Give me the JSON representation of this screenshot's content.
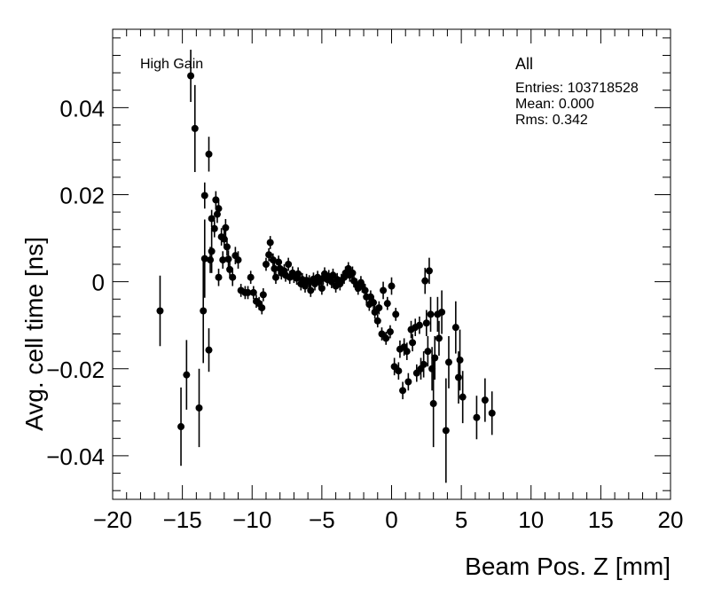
{
  "chart_data": {
    "type": "scatter",
    "xlabel": "Beam Pos. Z [mm]",
    "ylabel": "Avg. cell time [ns]",
    "xlim": [
      -20,
      20
    ],
    "ylim": [
      -0.05,
      0.058
    ],
    "xticks": [
      -20,
      -15,
      -10,
      -5,
      0,
      5,
      10,
      15,
      20
    ],
    "yticks": [
      -0.04,
      -0.02,
      0,
      0.02,
      0.04
    ],
    "xtick_labels": [
      "−20",
      "−15",
      "−10",
      "−5",
      "0",
      "5",
      "10",
      "15",
      "20"
    ],
    "ytick_labels": [
      "−0.04",
      "−0.02",
      "0",
      "0.02",
      "0.04"
    ],
    "annotation": "High Gain",
    "stats": {
      "title": "All",
      "entries": "Entries: 103718528",
      "mean": "Mean: 0.000",
      "rms": "Rms: 0.342"
    },
    "grid": false,
    "marker_color": "#000000",
    "points": [
      [
        -16.6,
        -0.0067,
        0.0081
      ],
      [
        -15.1,
        -0.0333,
        0.009
      ],
      [
        -14.7,
        -0.0214,
        0.008
      ],
      [
        -14.4,
        0.0473,
        0.006
      ],
      [
        -14.1,
        0.0352,
        0.01
      ],
      [
        -13.8,
        -0.029,
        0.009
      ],
      [
        -13.5,
        -0.0067,
        0.012
      ],
      [
        -13.4,
        0.0053,
        0.009
      ],
      [
        -13.4,
        0.0198,
        0.003
      ],
      [
        -13.1,
        0.0293,
        0.004
      ],
      [
        -13.1,
        -0.0157,
        0.005
      ],
      [
        -13.0,
        0.005,
        0.003
      ],
      [
        -12.9,
        0.007,
        0.005
      ],
      [
        -12.9,
        0.0145,
        0.002
      ],
      [
        -12.7,
        0.0122,
        0.002
      ],
      [
        -12.6,
        0.0188,
        0.002
      ],
      [
        -12.5,
        0.0155,
        0.002
      ],
      [
        -12.4,
        0.0168,
        0.002
      ],
      [
        -12.4,
        0.001,
        0.002
      ],
      [
        -12.2,
        0.0103,
        0.002
      ],
      [
        -12.1,
        0.005,
        0.002
      ],
      [
        -12.0,
        0.0098,
        0.002
      ],
      [
        -11.9,
        0.0124,
        0.002
      ],
      [
        -11.8,
        0.008,
        0.002
      ],
      [
        -11.7,
        0.0052,
        0.002
      ],
      [
        -11.6,
        0.0028,
        0.002
      ],
      [
        -11.4,
        0.001,
        0.002
      ],
      [
        -11.2,
        0.006,
        0.002
      ],
      [
        -11.0,
        0.005,
        0.002
      ],
      [
        -10.8,
        -0.002,
        0.0015
      ],
      [
        -10.5,
        -0.0025,
        0.0015
      ],
      [
        -10.3,
        -0.0025,
        0.0015
      ],
      [
        -10.1,
        0.001,
        0.0015
      ],
      [
        -9.9,
        -0.0025,
        0.0015
      ],
      [
        -9.7,
        -0.0045,
        0.0015
      ],
      [
        -9.5,
        -0.005,
        0.0015
      ],
      [
        -9.3,
        -0.006,
        0.0015
      ],
      [
        -9.2,
        -0.003,
        0.0015
      ],
      [
        -9.0,
        0.004,
        0.0015
      ],
      [
        -8.8,
        0.0062,
        0.0015
      ],
      [
        -8.7,
        0.009,
        0.0015
      ],
      [
        -8.5,
        0.005,
        0.0015
      ],
      [
        -8.4,
        0.003,
        0.0015
      ],
      [
        -8.3,
        0.001,
        0.0015
      ],
      [
        -8.1,
        0.0045,
        0.0015
      ],
      [
        -8.0,
        0.003,
        0.0015
      ],
      [
        -7.9,
        0.002,
        0.0015
      ],
      [
        -7.7,
        0.0025,
        0.0015
      ],
      [
        -7.6,
        0.0015,
        0.0015
      ],
      [
        -7.4,
        0.004,
        0.0015
      ],
      [
        -7.3,
        0.001,
        0.0015
      ],
      [
        -7.1,
        0.002,
        0.0015
      ],
      [
        -7.0,
        0.0012,
        0.0015
      ],
      [
        -6.8,
        0.0008,
        0.0015
      ],
      [
        -6.7,
        0.0018,
        0.0015
      ],
      [
        -6.5,
        -0.0005,
        0.0015
      ],
      [
        -6.4,
        0.0005,
        0.0015
      ],
      [
        -6.2,
        -0.001,
        0.0015
      ],
      [
        -6.1,
        0.0003,
        0.0015
      ],
      [
        -5.9,
        0.0,
        0.0015
      ],
      [
        -5.8,
        -0.002,
        0.0015
      ],
      [
        -5.6,
        0.0006,
        0.0015
      ],
      [
        -5.5,
        -0.0005,
        0.0015
      ],
      [
        -5.3,
        0.001,
        0.0015
      ],
      [
        -5.2,
        0.0,
        0.0015
      ],
      [
        -5.0,
        -0.0015,
        0.0015
      ],
      [
        -4.9,
        0.0008,
        0.0015
      ],
      [
        -4.8,
        0.0018,
        0.0015
      ],
      [
        -4.6,
        0.0005,
        0.0015
      ],
      [
        -4.5,
        0.0012,
        0.0015
      ],
      [
        -4.3,
        0.0,
        0.0015
      ],
      [
        -4.2,
        0.0015,
        0.0015
      ],
      [
        -4.0,
        -0.001,
        0.0015
      ],
      [
        -3.9,
        0.0005,
        0.0015
      ],
      [
        -3.7,
        -0.0005,
        0.0015
      ],
      [
        -3.6,
        0.0003,
        0.0015
      ],
      [
        -3.4,
        0.001,
        0.0015
      ],
      [
        -3.3,
        0.002,
        0.0015
      ],
      [
        -3.1,
        0.003,
        0.0015
      ],
      [
        -3.0,
        0.0015,
        0.0015
      ],
      [
        -2.8,
        0.002,
        0.0015
      ],
      [
        -2.7,
        0.0002,
        0.0015
      ],
      [
        -2.5,
        -0.0008,
        0.0015
      ],
      [
        -2.4,
        -0.0015,
        0.0015
      ],
      [
        -2.2,
        -0.0002,
        0.0015
      ],
      [
        -2.1,
        -0.001,
        0.0015
      ],
      [
        -1.9,
        -0.002,
        0.0015
      ],
      [
        -1.8,
        -0.0035,
        0.0015
      ],
      [
        -1.6,
        -0.0052,
        0.0015
      ],
      [
        -1.5,
        -0.0035,
        0.0015
      ],
      [
        -1.3,
        -0.0048,
        0.0015
      ],
      [
        -1.2,
        -0.007,
        0.0015
      ],
      [
        -1.0,
        -0.009,
        0.0015
      ],
      [
        -0.9,
        -0.006,
        0.0015
      ],
      [
        -0.7,
        -0.012,
        0.0015
      ],
      [
        -0.6,
        -0.002,
        0.002
      ],
      [
        -0.4,
        -0.013,
        0.0015
      ],
      [
        -0.3,
        -0.005,
        0.0015
      ],
      [
        -0.1,
        -0.0115,
        0.0015
      ],
      [
        0.0,
        -0.001,
        0.002
      ],
      [
        0.2,
        -0.0195,
        0.002
      ],
      [
        0.3,
        -0.0075,
        0.0015
      ],
      [
        0.5,
        -0.0205,
        0.002
      ],
      [
        0.6,
        -0.0155,
        0.002
      ],
      [
        0.8,
        -0.025,
        0.002
      ],
      [
        0.9,
        -0.015,
        0.002
      ],
      [
        1.1,
        -0.016,
        0.002
      ],
      [
        1.2,
        -0.023,
        0.002
      ],
      [
        1.4,
        -0.011,
        0.002
      ],
      [
        1.5,
        -0.014,
        0.002
      ],
      [
        1.7,
        -0.0105,
        0.002
      ],
      [
        1.8,
        -0.021,
        0.002
      ],
      [
        2.0,
        -0.01,
        0.002
      ],
      [
        2.1,
        -0.02,
        0.0025
      ],
      [
        2.3,
        -0.019,
        0.003
      ],
      [
        2.4,
        0.0002,
        0.003
      ],
      [
        2.5,
        -0.0095,
        0.003
      ],
      [
        2.6,
        -0.016,
        0.0035
      ],
      [
        2.7,
        0.0025,
        0.003
      ],
      [
        2.8,
        -0.0075,
        0.004
      ],
      [
        2.9,
        -0.02,
        0.005
      ],
      [
        3.0,
        -0.028,
        0.01
      ],
      [
        3.1,
        -0.0175,
        0.005
      ],
      [
        3.3,
        -0.0075,
        0.004
      ],
      [
        3.4,
        -0.013,
        0.004
      ],
      [
        3.6,
        -0.007,
        0.005
      ],
      [
        3.9,
        -0.0342,
        0.012
      ],
      [
        4.1,
        -0.0185,
        0.006
      ],
      [
        4.6,
        -0.0105,
        0.006
      ],
      [
        4.8,
        -0.022,
        0.006
      ],
      [
        4.9,
        -0.018,
        0.007
      ],
      [
        5.1,
        -0.0265,
        0.006
      ],
      [
        6.1,
        -0.0312,
        0.005
      ],
      [
        6.7,
        -0.0272,
        0.005
      ],
      [
        7.2,
        -0.0302,
        0.005
      ]
    ]
  }
}
